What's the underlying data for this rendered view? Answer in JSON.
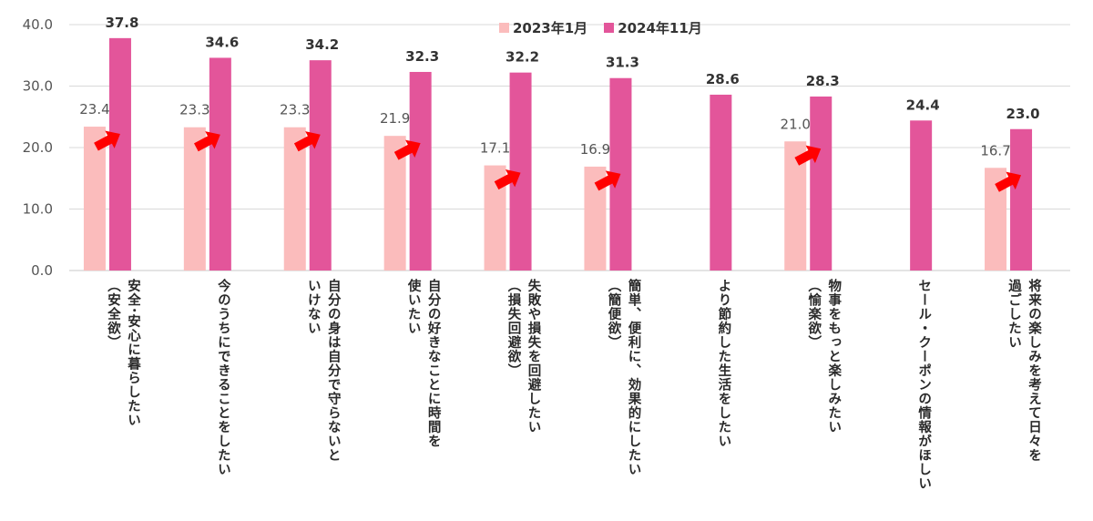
{
  "chart_data": {
    "type": "bar",
    "title": "",
    "xlabel": "",
    "ylabel": "",
    "ylim": [
      0,
      40
    ],
    "yticks": [
      "0.0",
      "10.0",
      "20.0",
      "30.0",
      "40.0"
    ],
    "grid": true,
    "legend_position": "top-center",
    "categories": [
      {
        "lines": [
          "安全･安心に暮らしたい"
        ],
        "sub": "（安全欲）"
      },
      {
        "lines": [
          "今のうちにできることをしたい"
        ],
        "sub": ""
      },
      {
        "lines": [
          "自分の身は自分で守らないと",
          "いけない"
        ],
        "sub": ""
      },
      {
        "lines": [
          "自分の好きなことに時間を",
          "使いたい"
        ],
        "sub": ""
      },
      {
        "lines": [
          "失敗や損失を回避したい"
        ],
        "sub": "（損失回避欲）"
      },
      {
        "lines": [
          "簡単、便利に、効果的にしたい"
        ],
        "sub": "（簡便欲）"
      },
      {
        "lines": [
          "より節約した生活をしたい"
        ],
        "sub": ""
      },
      {
        "lines": [
          "物事をもっと楽しみたい"
        ],
        "sub": "（愉楽欲）"
      },
      {
        "lines": [
          "セール・クーポンの情報がほしい"
        ],
        "sub": ""
      },
      {
        "lines": [
          "将来の楽しみを考えて日々を",
          "過ごしたい"
        ],
        "sub": ""
      }
    ],
    "series": [
      {
        "name": "2023年1月",
        "color": "#fbbcbc",
        "values": [
          23.4,
          23.3,
          23.3,
          21.9,
          17.1,
          16.9,
          null,
          21.0,
          null,
          16.7
        ],
        "labels": [
          "23.4",
          "23.3",
          "23.3",
          "21.9",
          "17.1",
          "16.9",
          "",
          "21.0",
          "",
          "16.7"
        ]
      },
      {
        "name": "2024年11月",
        "color": "#e3559a",
        "values": [
          37.8,
          34.6,
          34.2,
          32.3,
          32.2,
          31.3,
          28.6,
          28.3,
          24.4,
          23.0
        ],
        "labels": [
          "37.8",
          "34.6",
          "34.2",
          "32.3",
          "32.2",
          "31.3",
          "28.6",
          "28.3",
          "24.4",
          "23.0"
        ]
      }
    ],
    "annotations": {
      "arrow_color": "#ff0000",
      "arrow_on_categories_with_both_series": true
    }
  }
}
